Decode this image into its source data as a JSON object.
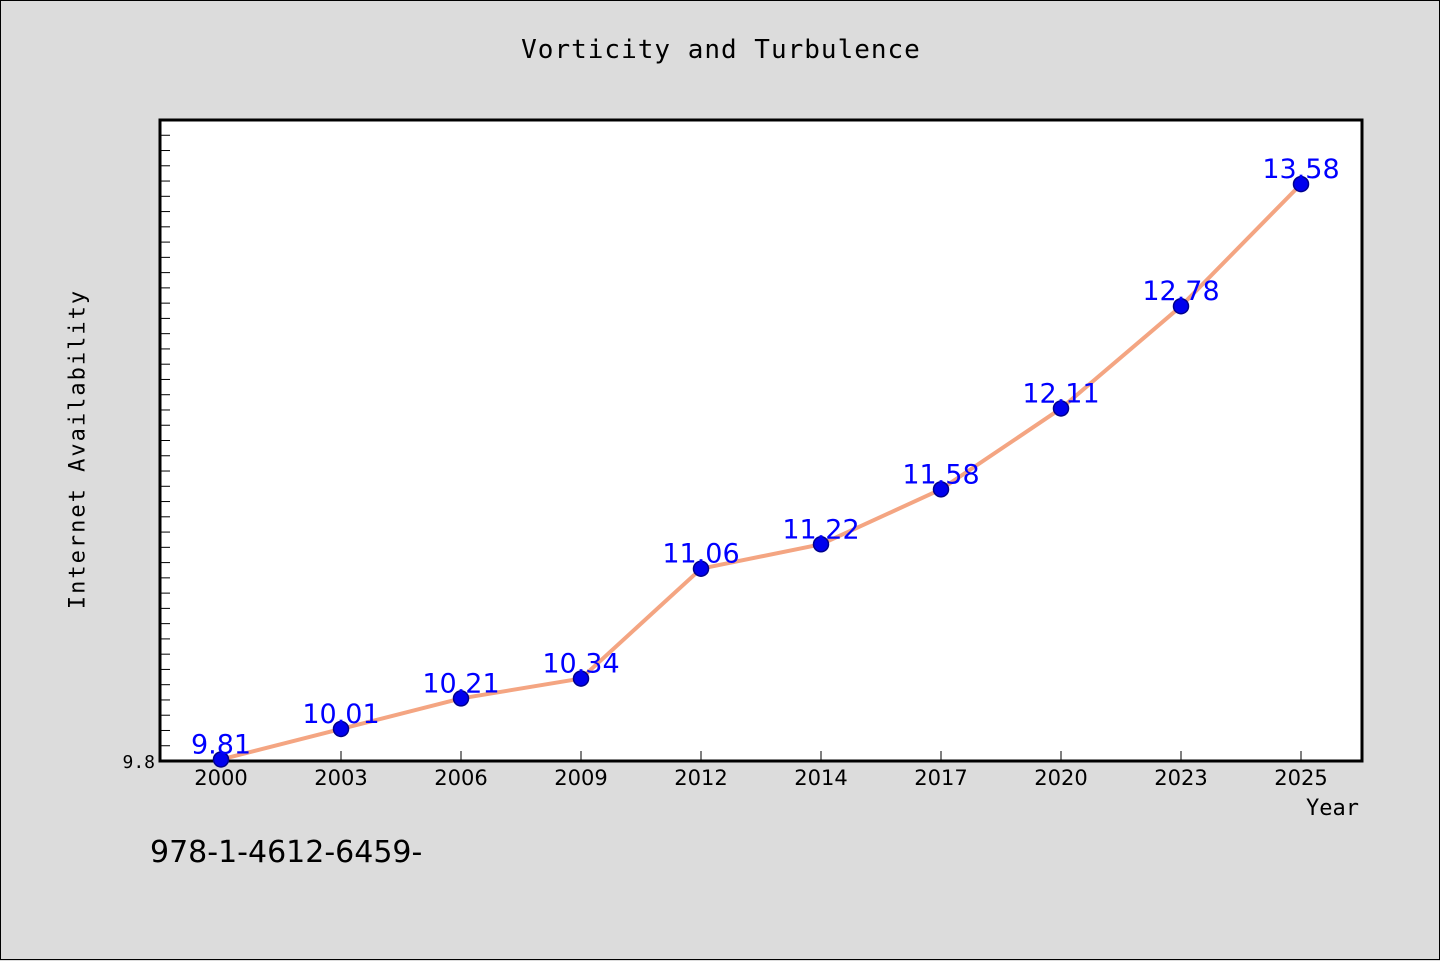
{
  "chart_data": {
    "type": "line",
    "title": "Vorticity and Turbulence",
    "xlabel": "Year",
    "ylabel": "Internet Availability",
    "categories": [
      "2000",
      "2003",
      "2006",
      "2009",
      "2012",
      "2014",
      "2017",
      "2020",
      "2023",
      "2025"
    ],
    "series": [
      {
        "values": [
          9.81,
          10.01,
          10.21,
          10.34,
          11.06,
          11.22,
          11.58,
          12.11,
          12.78,
          13.58
        ]
      }
    ],
    "data_labels": [
      "9.81",
      "10.01",
      "10.21",
      "10.34",
      "11.06",
      "11.22",
      "11.58",
      "12.11",
      "12.78",
      "13.58"
    ],
    "y_tick_labels": [
      "9.8"
    ],
    "ylim": [
      9.8,
      14.0
    ],
    "grid": false,
    "legend": false,
    "colors": {
      "line": "#f4a582",
      "marker_fill": "#0000ee",
      "marker_stroke": "#00008b",
      "data_label": "#0000ff",
      "plot_background": "#ffffff",
      "figure_background": "#dcdcdc"
    }
  },
  "footer_text": "978-1-4612-6459-"
}
